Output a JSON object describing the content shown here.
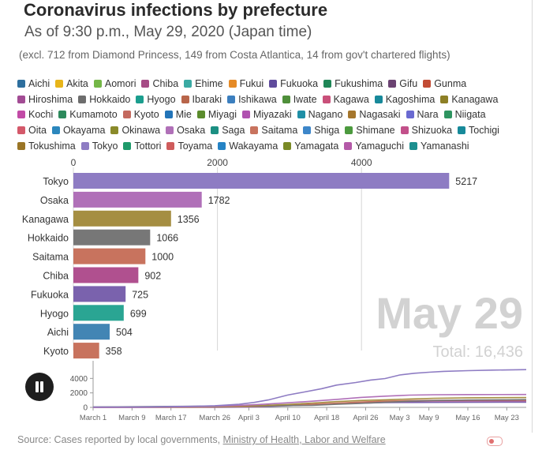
{
  "header": {
    "title": "Coronavirus infections by prefecture",
    "subtitle": "As of 9:30 p.m., May 29, 2020 (Japan time)",
    "note": "(excl. 712 from Diamond Princess, 149 from Costa Atlantica, 14 from gov't chartered flights)"
  },
  "legend": [
    [
      {
        "name": "Aichi",
        "color": "#2e6f9e"
      },
      {
        "name": "Akita",
        "color": "#e8b51a"
      },
      {
        "name": "Aomori",
        "color": "#74b747"
      },
      {
        "name": "Chiba",
        "color": "#a64c86"
      },
      {
        "name": "Ehime",
        "color": "#3aaaa3"
      },
      {
        "name": "Fukui",
        "color": "#e58a26"
      },
      {
        "name": "Fukuoka",
        "color": "#5f4b9c"
      },
      {
        "name": "Fukushima",
        "color": "#1f8757"
      },
      {
        "name": "Gifu",
        "color": "#6b4372"
      },
      {
        "name": "Gunma",
        "color": "#c24b34"
      }
    ],
    [
      {
        "name": "Hiroshima",
        "color": "#a24c94"
      },
      {
        "name": "Hokkaido",
        "color": "#6d6d6d"
      },
      {
        "name": "Hyogo",
        "color": "#1b9e8e"
      },
      {
        "name": "Ibaraki",
        "color": "#b8654a"
      },
      {
        "name": "Ishikawa",
        "color": "#3c7fbf"
      },
      {
        "name": "Iwate",
        "color": "#4f8f3a"
      },
      {
        "name": "Kagawa",
        "color": "#c9507a"
      },
      {
        "name": "Kagoshima",
        "color": "#17899a"
      },
      {
        "name": "Kanagawa",
        "color": "#8d7f26"
      }
    ],
    [
      {
        "name": "Kochi",
        "color": "#c24ba6"
      },
      {
        "name": "Kumamoto",
        "color": "#2d8a5c"
      },
      {
        "name": "Kyoto",
        "color": "#c46a5f"
      },
      {
        "name": "Mie",
        "color": "#2274b8"
      },
      {
        "name": "Miyagi",
        "color": "#5b8c2c"
      },
      {
        "name": "Miyazaki",
        "color": "#b052b0"
      },
      {
        "name": "Nagano",
        "color": "#1f8fa6"
      },
      {
        "name": "Nagasaki",
        "color": "#a5762c"
      },
      {
        "name": "Nara",
        "color": "#6a6ad1"
      },
      {
        "name": "Niigata",
        "color": "#2e9460"
      }
    ],
    [
      {
        "name": "Oita",
        "color": "#d4596a"
      },
      {
        "name": "Okayama",
        "color": "#2c87bd"
      },
      {
        "name": "Okinawa",
        "color": "#8a8a2a"
      },
      {
        "name": "Osaka",
        "color": "#b070b8"
      },
      {
        "name": "Saga",
        "color": "#1b8f82"
      },
      {
        "name": "Saitama",
        "color": "#c8735e"
      },
      {
        "name": "Shiga",
        "color": "#3d86c9"
      },
      {
        "name": "Shimane",
        "color": "#4c9a3e"
      },
      {
        "name": "Shizuoka",
        "color": "#c2508a"
      },
      {
        "name": "Tochigi",
        "color": "#178a9a"
      }
    ],
    [
      {
        "name": "Tokushima",
        "color": "#9a7526"
      },
      {
        "name": "Tokyo",
        "color": "#8e7cc3"
      },
      {
        "name": "Tottori",
        "color": "#1e9a6a"
      },
      {
        "name": "Toyama",
        "color": "#cf5c5c"
      },
      {
        "name": "Wakayama",
        "color": "#2583c5"
      },
      {
        "name": "Yamagata",
        "color": "#7a8a26"
      },
      {
        "name": "Yamaguchi",
        "color": "#b45aa8"
      },
      {
        "name": "Yamanashi",
        "color": "#1c8f8f"
      }
    ]
  ],
  "chart_data": [
    {
      "type": "bar",
      "orientation": "horizontal",
      "xlim": [
        0,
        5800
      ],
      "xticks": [
        0,
        2000,
        4000
      ],
      "categories": [
        "Tokyo",
        "Osaka",
        "Kanagawa",
        "Hokkaido",
        "Saitama",
        "Chiba",
        "Fukuoka",
        "Hyogo",
        "Aichi",
        "Kyoto"
      ],
      "category_labels": [
        "Tokyo",
        "Osaka",
        "Kanagawa",
        "Hokkaido",
        "Saitama",
        "Chiba",
        "Fukuoka",
        "Hyogo",
        "Aichi",
        "Kyoto"
      ],
      "values": [
        5217,
        1782,
        1356,
        1066,
        1000,
        902,
        725,
        699,
        504,
        358
      ],
      "value_labels": [
        "5217",
        "1782",
        "1356",
        "1066",
        "1000",
        "902",
        "725",
        "699",
        "504",
        "358"
      ],
      "colors": [
        "#8e7cc3",
        "#b070b8",
        "#a58e42",
        "#777777",
        "#c8735e",
        "#b0508f",
        "#7a62ad",
        "#2aa593",
        "#4285b4",
        "#c8735e"
      ],
      "watermark_date": "May 29",
      "watermark_total": "Total: 16,436"
    },
    {
      "type": "line",
      "ylim": [
        0,
        6000
      ],
      "yticks": [
        0,
        2000,
        4000
      ],
      "ytick_labels": [
        "0",
        "2000",
        "4000"
      ],
      "x_range": [
        0,
        89
      ],
      "xticks": [
        0,
        8,
        16,
        25,
        32,
        40,
        48,
        56,
        63,
        69,
        77,
        85
      ],
      "xtick_labels": [
        "March 1",
        "March 9",
        "March 17",
        "March 26",
        "April 3",
        "April 10",
        "April 18",
        "April 26",
        "May 3",
        "May 9",
        "May 16",
        "May 23"
      ],
      "series": [
        {
          "name": "Tokyo",
          "color": "#8e7cc3",
          "x": [
            0,
            10,
            20,
            25,
            30,
            33,
            36,
            40,
            43,
            47,
            50,
            54,
            57,
            60,
            63,
            66,
            69,
            72,
            77,
            82,
            89
          ],
          "values": [
            40,
            70,
            140,
            230,
            430,
            680,
            1030,
            1700,
            2070,
            2590,
            3080,
            3440,
            3780,
            3980,
            4470,
            4710,
            4850,
            4980,
            5070,
            5150,
            5217
          ]
        },
        {
          "name": "Osaka",
          "color": "#b070b8",
          "x": [
            0,
            10,
            20,
            25,
            30,
            35,
            40,
            45,
            50,
            55,
            60,
            65,
            70,
            77,
            89
          ],
          "values": [
            0,
            30,
            100,
            150,
            260,
            420,
            630,
            850,
            1100,
            1370,
            1550,
            1690,
            1740,
            1770,
            1782
          ]
        },
        {
          "name": "Kanagawa",
          "color": "#a58e42",
          "x": [
            0,
            15,
            25,
            30,
            35,
            40,
            45,
            50,
            55,
            60,
            65,
            70,
            77,
            89
          ],
          "values": [
            30,
            50,
            90,
            150,
            260,
            400,
            600,
            800,
            950,
            1050,
            1160,
            1250,
            1320,
            1356
          ]
        },
        {
          "name": "Hokkaido",
          "color": "#777777",
          "x": [
            0,
            5,
            15,
            25,
            35,
            45,
            50,
            55,
            60,
            65,
            70,
            77,
            85,
            89
          ],
          "values": [
            60,
            80,
            130,
            170,
            200,
            280,
            420,
            560,
            700,
            850,
            950,
            1010,
            1050,
            1066
          ]
        },
        {
          "name": "Saitama",
          "color": "#c8735e",
          "x": [
            0,
            20,
            25,
            30,
            35,
            40,
            45,
            50,
            55,
            60,
            65,
            70,
            77,
            89
          ],
          "values": [
            0,
            20,
            50,
            100,
            180,
            290,
            420,
            580,
            740,
            860,
            940,
            980,
            995,
            1000
          ]
        },
        {
          "name": "Chiba",
          "color": "#b0508f",
          "x": [
            0,
            20,
            25,
            30,
            35,
            40,
            45,
            50,
            55,
            60,
            65,
            70,
            77,
            89
          ],
          "values": [
            0,
            30,
            60,
            120,
            190,
            270,
            380,
            510,
            660,
            760,
            840,
            880,
            895,
            902
          ]
        },
        {
          "name": "Fukuoka",
          "color": "#7a62ad",
          "x": [
            0,
            25,
            30,
            35,
            40,
            45,
            50,
            55,
            60,
            65,
            70,
            77,
            89
          ],
          "values": [
            0,
            10,
            30,
            100,
            220,
            360,
            480,
            580,
            650,
            680,
            690,
            700,
            725
          ]
        }
      ]
    }
  ],
  "source": {
    "prefix": "Source: Cases reported by local governments, ",
    "link": "Ministry of Health, Labor and Welfare"
  }
}
